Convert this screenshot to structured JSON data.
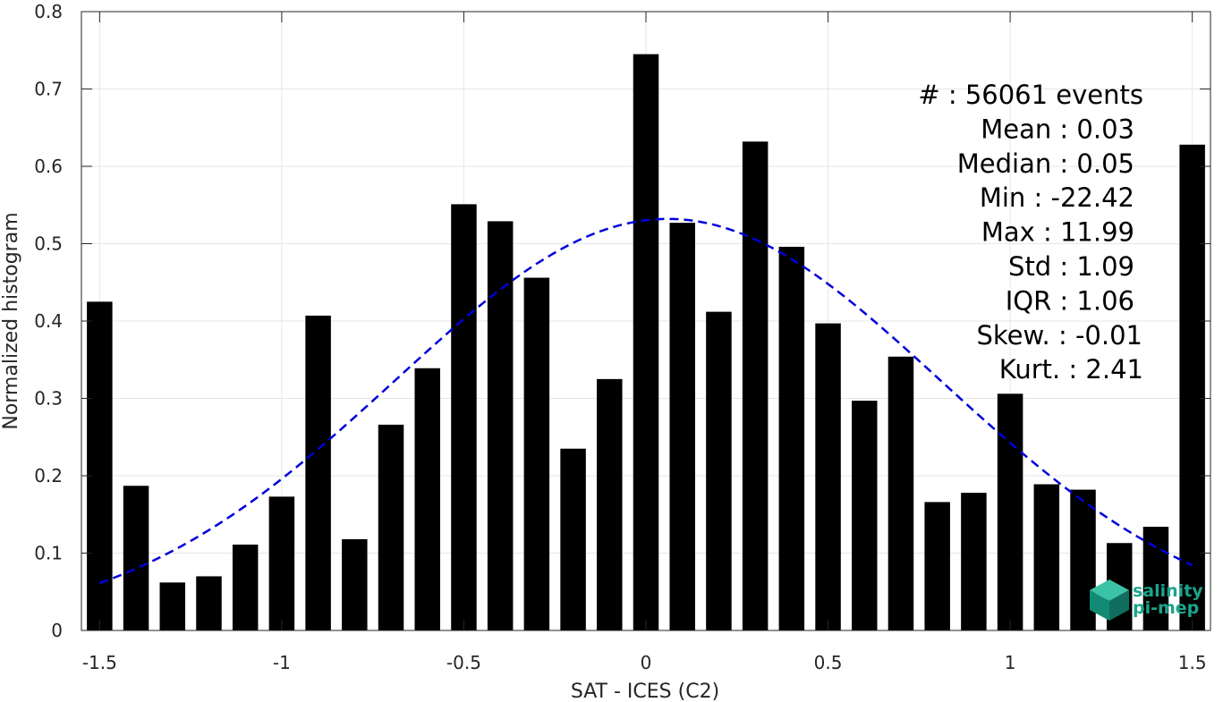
{
  "chart_data": {
    "type": "bar",
    "xlabel": "SAT - ICES (C2)",
    "ylabel": "Normalized histogram",
    "xlim": [
      -1.55,
      1.55
    ],
    "ylim": [
      0,
      0.8
    ],
    "grid": true,
    "x_ticks": [
      -1.5,
      -1,
      -0.5,
      0,
      0.5,
      1,
      1.5
    ],
    "x_tick_labels": [
      "-1.5",
      "-1",
      "-0.5",
      "0",
      "0.5",
      "1",
      "1.5"
    ],
    "y_ticks": [
      0,
      0.1,
      0.2,
      0.3,
      0.4,
      0.5,
      0.6,
      0.7,
      0.8
    ],
    "y_tick_labels": [
      "0",
      "0.1",
      "0.2",
      "0.3",
      "0.4",
      "0.5",
      "0.6",
      "0.7",
      "0.8"
    ],
    "bar_width": 0.07,
    "x": [
      -1.5,
      -1.4,
      -1.3,
      -1.2,
      -1.1,
      -1.0,
      -0.9,
      -0.8,
      -0.7,
      -0.6,
      -0.5,
      -0.4,
      -0.3,
      -0.2,
      -0.1,
      0.0,
      0.1,
      0.2,
      0.3,
      0.4,
      0.5,
      0.6,
      0.7,
      0.8,
      0.9,
      1.0,
      1.1,
      1.2,
      1.3,
      1.4,
      1.5
    ],
    "values": [
      0.425,
      0.187,
      0.062,
      0.07,
      0.111,
      0.173,
      0.407,
      0.118,
      0.266,
      0.339,
      0.551,
      0.529,
      0.456,
      0.235,
      0.325,
      0.745,
      0.527,
      0.412,
      0.632,
      0.496,
      0.397,
      0.297,
      0.354,
      0.166,
      0.178,
      0.306,
      0.189,
      0.182,
      0.113,
      0.134,
      0.628
    ],
    "bar_color": "#000000",
    "fit_curve": {
      "type": "normal",
      "mean": 0.06,
      "std": 0.75,
      "peak": 0.532,
      "x_range": [
        -1.5,
        1.5
      ],
      "color": "#0000dd",
      "style": "dashed"
    },
    "annotations": [
      "#  : 56061 events",
      "Mean : 0.03",
      "Median : 0.05",
      "Min : -22.42",
      "Max : 11.99",
      "Std : 1.09",
      "IQR : 1.06",
      "Skew. : -0.01",
      "Kurt. : 2.41"
    ]
  },
  "logo": {
    "line1": "salinity",
    "line2": "pi-mep",
    "color": "#1aa58c"
  }
}
